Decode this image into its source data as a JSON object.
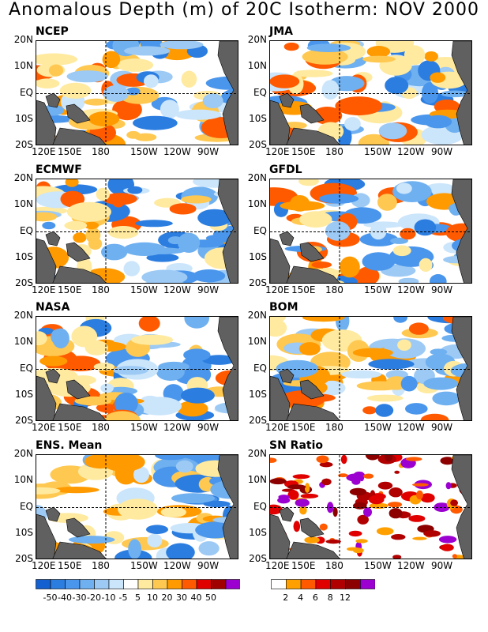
{
  "title": "Anomalous Depth (m) of 20C Isotherm: NOV 2000",
  "chart_data": [
    {
      "type": "heatmap",
      "title": "NCEP",
      "lat_labels": [
        "20N",
        "10N",
        "EQ",
        "10S",
        "20S"
      ],
      "lon_labels": [
        "120E",
        "150E",
        "180",
        "150W",
        "120W",
        "90W"
      ]
    },
    {
      "type": "heatmap",
      "title": "JMA",
      "lat_labels": [
        "20N",
        "10N",
        "EQ",
        "10S",
        "20S"
      ],
      "lon_labels": [
        "120E",
        "150E",
        "180",
        "150W",
        "120W",
        "90W"
      ]
    },
    {
      "type": "heatmap",
      "title": "ECMWF",
      "lat_labels": [
        "20N",
        "10N",
        "EQ",
        "10S",
        "20S"
      ],
      "lon_labels": [
        "120E",
        "150E",
        "180",
        "150W",
        "120W",
        "90W"
      ]
    },
    {
      "type": "heatmap",
      "title": "GFDL",
      "lat_labels": [
        "20N",
        "10N",
        "EQ",
        "10S",
        "20S"
      ],
      "lon_labels": [
        "120E",
        "150E",
        "180",
        "150W",
        "120W",
        "90W"
      ]
    },
    {
      "type": "heatmap",
      "title": "NASA",
      "lat_labels": [
        "20N",
        "10N",
        "EQ",
        "10S",
        "20S"
      ],
      "lon_labels": [
        "120E",
        "150E",
        "180",
        "150W",
        "120W",
        "90W"
      ]
    },
    {
      "type": "heatmap",
      "title": "BOM",
      "lat_labels": [
        "20N",
        "10N",
        "EQ",
        "10S",
        "20S"
      ],
      "lon_labels": [
        "120E",
        "150E",
        "180",
        "150W",
        "120W",
        "90W"
      ]
    },
    {
      "type": "heatmap",
      "title": "ENS. Mean",
      "lat_labels": [
        "20N",
        "10N",
        "EQ",
        "10S",
        "20S"
      ],
      "lon_labels": [
        "120E",
        "150E",
        "180",
        "150W",
        "120W",
        "90W"
      ]
    },
    {
      "type": "heatmap",
      "title": "SN Ratio",
      "lat_labels": [
        "20N",
        "10N",
        "EQ",
        "10S",
        "20S"
      ],
      "lon_labels": [
        "120E",
        "150E",
        "180",
        "150W",
        "120W",
        "90W"
      ]
    }
  ],
  "colorbar_anomaly": {
    "labels": [
      "-50",
      "-40",
      "-30",
      "-20",
      "-10",
      "-5",
      "5",
      "10",
      "20",
      "30",
      "40",
      "50"
    ],
    "colors": [
      "#1560d0",
      "#2b7de0",
      "#4a96ec",
      "#6fb0f0",
      "#9ccaf5",
      "#cbe5fb",
      "#ffffff",
      "#ffeaa0",
      "#ffc850",
      "#ff9a00",
      "#ff5a00",
      "#e00000",
      "#a00000",
      "#9b00d0"
    ]
  },
  "colorbar_sn": {
    "labels": [
      "2",
      "4",
      "6",
      "8",
      "12"
    ],
    "colors": [
      "#ffffff",
      "#ffa000",
      "#ff5a00",
      "#e00000",
      "#b00000",
      "#8c0000",
      "#9b00d0"
    ]
  },
  "colors": {
    "land": "#606060",
    "border": "#000000"
  }
}
